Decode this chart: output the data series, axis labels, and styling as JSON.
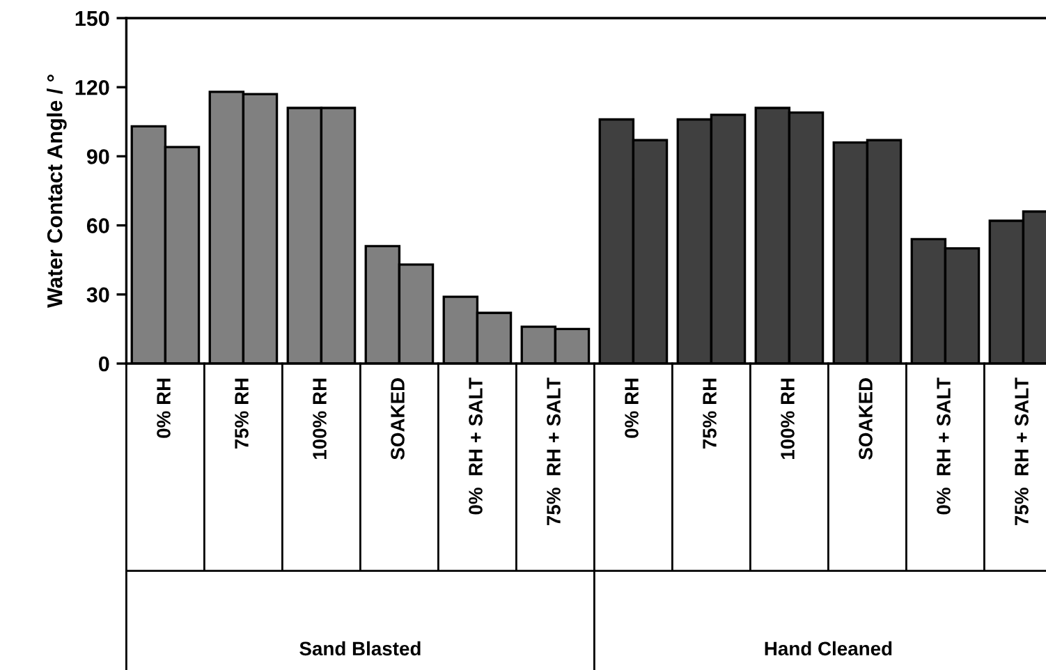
{
  "chart_data": {
    "type": "bar",
    "ylabel": "Water Contact Angle / °",
    "categories": [
      "0% RH",
      "75% RH",
      "100% RH",
      "SOAKED",
      "0%  RH + SALT",
      "75%  RH + SALT",
      "0% RH",
      "75% RH",
      "100% RH",
      "SOAKED",
      "0%  RH + SALT",
      "75%  RH + SALT"
    ],
    "series": [
      {
        "values": [
          103,
          118,
          111,
          51,
          29,
          16,
          106,
          106,
          111,
          96,
          54,
          62
        ],
        "colors": [
          "#808080",
          "#808080",
          "#808080",
          "#808080",
          "#808080",
          "#808080",
          "#404040",
          "#404040",
          "#404040",
          "#404040",
          "#404040",
          "#404040"
        ]
      },
      {
        "values": [
          94,
          117,
          111,
          43,
          22,
          15,
          97,
          108,
          109,
          97,
          50,
          66
        ],
        "colors": [
          "#808080",
          "#808080",
          "#808080",
          "#808080",
          "#808080",
          "#808080",
          "#404040",
          "#404040",
          "#404040",
          "#404040",
          "#404040",
          "#404040"
        ]
      }
    ],
    "annotations": [
      "Sand Blasted",
      "Hand Cleaned"
    ],
    "ylim": [
      0,
      150
    ],
    "yticks": [
      0,
      30,
      60,
      90,
      120,
      150
    ],
    "grid": false,
    "legend": false
  }
}
